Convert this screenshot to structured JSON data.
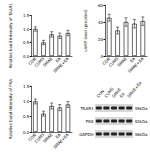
{
  "chart_data": [
    {
      "type": "bar",
      "y_label": "Relative band intensity of TAAR1",
      "categories": [
        "CON",
        "CUMS",
        "SMAE",
        "EA",
        "SMAE+EA"
      ],
      "values": [
        1.0,
        0.5,
        0.8,
        0.75,
        0.85
      ],
      "errors": [
        0.08,
        0.08,
        0.1,
        0.1,
        0.1
      ],
      "color": "#ffffff",
      "ylim": [
        0,
        1.5
      ],
      "yticks": [
        {
          "value": 0,
          "label": "0.0"
        },
        {
          "value": 0.5,
          "label": "0.5"
        },
        {
          "value": 1,
          "label": "1.0"
        },
        {
          "value": 1.5,
          "label": "1.5"
        }
      ],
      "grid": false
    },
    {
      "type": "bar",
      "y_label": "cAMP level (pmol/ml)",
      "categories": [
        "CON",
        "CUMS",
        "SMAE",
        "EA",
        "SMAE+EA"
      ],
      "values": [
        45,
        30,
        40,
        38,
        41
      ],
      "errors": [
        4,
        4,
        5,
        5,
        5
      ],
      "color": "#ffffff",
      "ylim": [
        0,
        60
      ],
      "yticks": [
        0,
        20,
        40,
        60
      ],
      "grid": false
    },
    {
      "type": "bar",
      "y_label": "Relative band intensity of PKA",
      "categories": [
        "CON",
        "CUMS",
        "SMAE",
        "EA",
        "SMAE+EA"
      ],
      "values": [
        1.0,
        0.6,
        0.85,
        0.8,
        0.9
      ],
      "errors": [
        0.08,
        0.08,
        0.1,
        0.1,
        0.1
      ],
      "color": "#ffffff",
      "ylim": [
        0,
        1.5
      ],
      "yticks": [
        {
          "value": 0,
          "label": "0.0"
        },
        {
          "value": 0.5,
          "label": "0.5"
        },
        {
          "value": 1,
          "label": "1.0"
        },
        {
          "value": 1.5,
          "label": "1.5"
        }
      ],
      "grid": false
    }
  ],
  "blot": {
    "lanes": [
      "CON",
      "CUMS",
      "SMAE",
      "EA",
      "SMAE+EA"
    ],
    "rows": [
      {
        "label": "TAAR1",
        "size": "39kDa"
      },
      {
        "label": "PKA",
        "size": "42kDa"
      },
      {
        "label": "GAPDH",
        "size": "36kDa"
      }
    ]
  }
}
